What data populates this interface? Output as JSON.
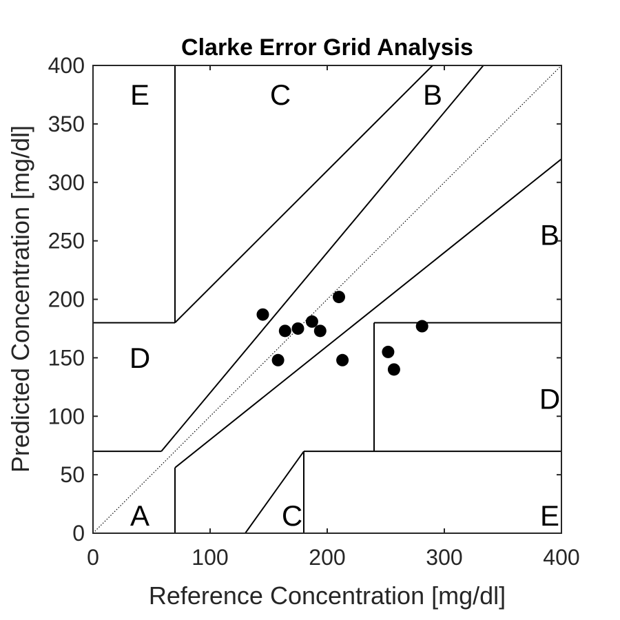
{
  "chart_data": {
    "type": "scatter",
    "title": "Clarke Error Grid Analysis",
    "xlabel": "Reference Concentration [mg/dl]",
    "ylabel": "Predicted Concentration [mg/dl]",
    "xlim": [
      0,
      400
    ],
    "ylim": [
      0,
      400
    ],
    "xticks": [
      0,
      100,
      200,
      300,
      400
    ],
    "yticks": [
      0,
      50,
      100,
      150,
      200,
      250,
      300,
      350,
      400
    ],
    "grid": false,
    "colors": {
      "points": "#000000",
      "lines": "#000000",
      "axes": "#262626"
    },
    "series": [
      {
        "points": [
          {
            "x": 145,
            "y": 187
          },
          {
            "x": 158,
            "y": 148
          },
          {
            "x": 164,
            "y": 173
          },
          {
            "x": 175,
            "y": 175
          },
          {
            "x": 187,
            "y": 181
          },
          {
            "x": 194,
            "y": 173
          },
          {
            "x": 210,
            "y": 202
          },
          {
            "x": 213,
            "y": 148
          },
          {
            "x": 252,
            "y": 155
          },
          {
            "x": 257,
            "y": 140
          },
          {
            "x": 281,
            "y": 177
          }
        ]
      }
    ],
    "zone_lines": [
      {
        "from": [
          70,
          180
        ],
        "to": [
          290,
          400
        ]
      },
      {
        "from": [
          70,
          84
        ],
        "to": [
          333.33,
          400
        ]
      },
      {
        "from": [
          70,
          56
        ],
        "to": [
          400,
          320
        ]
      },
      {
        "from": [
          70,
          0
        ],
        "to": [
          70,
          56
        ]
      },
      {
        "from": [
          70,
          180
        ],
        "to": [
          70,
          400
        ]
      },
      {
        "from": [
          0,
          180
        ],
        "to": [
          70,
          180
        ]
      },
      {
        "from": [
          0,
          70
        ],
        "to": [
          58.33,
          70
        ]
      },
      {
        "from": [
          58.33,
          70
        ],
        "to": [
          70,
          84
        ]
      },
      {
        "from": [
          130,
          0
        ],
        "to": [
          180,
          70
        ]
      },
      {
        "from": [
          180,
          0
        ],
        "to": [
          180,
          70
        ]
      },
      {
        "from": [
          180,
          70
        ],
        "to": [
          400,
          70
        ]
      },
      {
        "from": [
          240,
          70
        ],
        "to": [
          240,
          180
        ]
      },
      {
        "from": [
          240,
          180
        ],
        "to": [
          400,
          180
        ]
      }
    ],
    "identity_line": {
      "from": [
        0,
        0
      ],
      "to": [
        400,
        400
      ]
    },
    "zone_labels": [
      {
        "text": "E",
        "x": 40,
        "y": 375
      },
      {
        "text": "C",
        "x": 160,
        "y": 375
      },
      {
        "text": "B",
        "x": 290,
        "y": 375
      },
      {
        "text": "B",
        "x": 390,
        "y": 255
      },
      {
        "text": "D",
        "x": 40,
        "y": 150
      },
      {
        "text": "D",
        "x": 390,
        "y": 115
      },
      {
        "text": "A",
        "x": 40,
        "y": 15
      },
      {
        "text": "C",
        "x": 170,
        "y": 15
      },
      {
        "text": "E",
        "x": 390,
        "y": 15
      }
    ]
  }
}
